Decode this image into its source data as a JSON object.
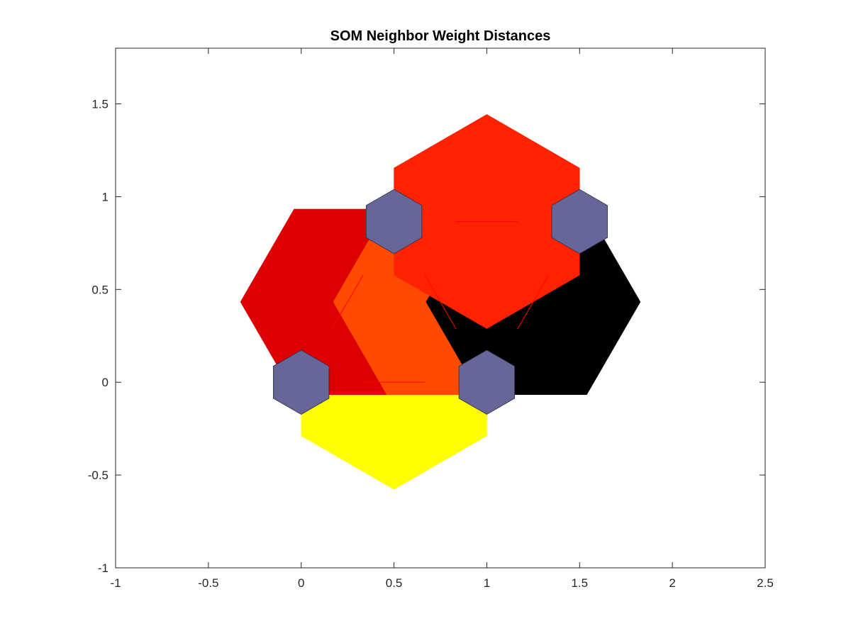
{
  "chart_data": {
    "type": "heatmap",
    "title": "SOM Neighbor Weight Distances",
    "xlabel": "",
    "ylabel": "",
    "xlim": [
      -1,
      2.5
    ],
    "ylim": [
      -1,
      1.8
    ],
    "xticks": [
      "-1",
      "-0.5",
      "0",
      "0.5",
      "1",
      "1.5",
      "2",
      "2.5"
    ],
    "yticks": [
      "-1",
      "-0.5",
      "0",
      "0.5",
      "1",
      "1.5"
    ],
    "xtick_values": [
      -1,
      -0.5,
      0,
      0.5,
      1,
      1.5,
      2,
      2.5
    ],
    "ytick_values": [
      -1,
      -0.5,
      0,
      0.5,
      1,
      1.5
    ],
    "grid": false,
    "neurons": [
      {
        "x": 0,
        "y": 0
      },
      {
        "x": 1,
        "y": 0
      },
      {
        "x": 0.5,
        "y": 0.866
      },
      {
        "x": 1.5,
        "y": 0.866
      }
    ],
    "neighbor_distances": [
      {
        "from": 0,
        "to": 1,
        "cx": 0.5,
        "cy": 0,
        "color": "#ffff00"
      },
      {
        "from": 0,
        "to": 2,
        "cx": 0.25,
        "cy": 0.433,
        "color": "#dd0000"
      },
      {
        "from": 1,
        "to": 2,
        "cx": 0.75,
        "cy": 0.433,
        "color": "#ff4a00"
      },
      {
        "from": 1,
        "to": 3,
        "cx": 1.25,
        "cy": 0.433,
        "color": "#000000"
      },
      {
        "from": 2,
        "to": 3,
        "cx": 1.0,
        "cy": 0.866,
        "color": "#ff2200"
      }
    ],
    "colors": {
      "neuron": "#666699",
      "connection_line": "#ff0000",
      "axis": "#262626"
    }
  }
}
